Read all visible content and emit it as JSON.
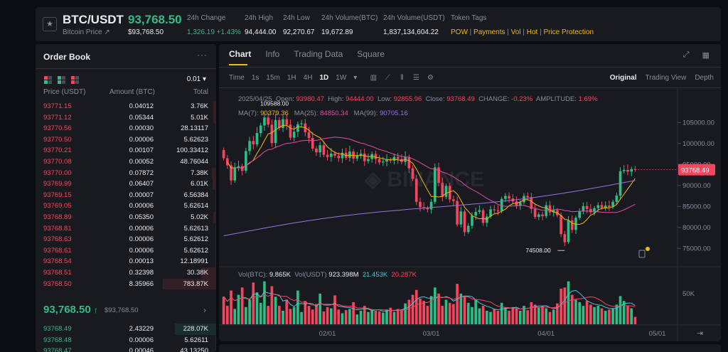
{
  "ticker": {
    "symbol": "BTC/USDT",
    "subtitle": "Bitcoin Price ↗",
    "last_price": "93,768.50",
    "last_price_usd": "$93,768.50",
    "stats": [
      {
        "label": "24h Change",
        "value": "1,326.19 +1.43%",
        "color": "#2ebd85"
      },
      {
        "label": "24h High",
        "value": "94,444.00",
        "color": "#eaecef"
      },
      {
        "label": "24h Low",
        "value": "92,270.67",
        "color": "#eaecef"
      },
      {
        "label": "24h Volume(BTC)",
        "value": "19,672.89",
        "color": "#eaecef"
      },
      {
        "label": "24h Volume(USDT)",
        "value": "1,837,134,604.22",
        "color": "#eaecef"
      }
    ],
    "tags_label": "Token Tags",
    "tags": [
      "POW",
      "Payments",
      "Vol",
      "Hot",
      "Price Protection"
    ]
  },
  "orderbook": {
    "title": "Order Book",
    "more": "···",
    "precision": "0.01 ▾",
    "headers": {
      "price": "Price (USDT)",
      "amount": "Amount (BTC)",
      "total": "Total"
    },
    "asks": [
      {
        "price": "93771.15",
        "amount": "0.04012",
        "total": "3.76K",
        "depth": 0.05
      },
      {
        "price": "93771.12",
        "amount": "0.05344",
        "total": "5.01K",
        "depth": 0.06
      },
      {
        "price": "93770.56",
        "amount": "0.00030",
        "total": "28.13117",
        "depth": 0.01
      },
      {
        "price": "93770.50",
        "amount": "0.00006",
        "total": "5.62623",
        "depth": 0.01
      },
      {
        "price": "93770.21",
        "amount": "0.00107",
        "total": "100.33412",
        "depth": 0.01
      },
      {
        "price": "93770.08",
        "amount": "0.00052",
        "total": "48.76044",
        "depth": 0.01
      },
      {
        "price": "93770.00",
        "amount": "0.07872",
        "total": "7.38K",
        "depth": 0.08
      },
      {
        "price": "93769.99",
        "amount": "0.06407",
        "total": "6.01K",
        "depth": 0.07
      },
      {
        "price": "93769.15",
        "amount": "0.00007",
        "total": "6.56384",
        "depth": 0.01
      },
      {
        "price": "93769.05",
        "amount": "0.00006",
        "total": "5.62614",
        "depth": 0.01
      },
      {
        "price": "93768.89",
        "amount": "0.05350",
        "total": "5.02K",
        "depth": 0.06
      },
      {
        "price": "93768.81",
        "amount": "0.00006",
        "total": "5.62613",
        "depth": 0.01
      },
      {
        "price": "93768.63",
        "amount": "0.00006",
        "total": "5.62612",
        "depth": 0.01
      },
      {
        "price": "93768.61",
        "amount": "0.00006",
        "total": "5.62612",
        "depth": 0.01
      },
      {
        "price": "93768.54",
        "amount": "0.00013",
        "total": "12.18991",
        "depth": 0.01
      },
      {
        "price": "93768.51",
        "amount": "0.32398",
        "total": "30.38K",
        "depth": 0.28
      },
      {
        "price": "93768.50",
        "amount": "8.35966",
        "total": "783.87K",
        "depth": 1.0
      }
    ],
    "mid_price": "93,768.50",
    "mid_arrow": "↑",
    "mid_usd": "$93,768.50",
    "mid_chevron": "›",
    "bids": [
      {
        "price": "93768.49",
        "amount": "2.43229",
        "total": "228.07K",
        "depth": 0.78
      },
      {
        "price": "93768.48",
        "amount": "0.00006",
        "total": "5.62611",
        "depth": 0.01
      },
      {
        "price": "93768.47",
        "amount": "0.00046",
        "total": "43.13250",
        "depth": 0.01
      }
    ]
  },
  "chart_panel": {
    "tabs": [
      "Chart",
      "Info",
      "Trading Data",
      "Square"
    ],
    "active_tab": "Chart",
    "intervals": [
      "Time",
      "1s",
      "15m",
      "1H",
      "4H",
      "1D",
      "1W"
    ],
    "active_interval": "1D",
    "interval_more": "▾",
    "view_modes": [
      "Original",
      "Trading View",
      "Depth"
    ],
    "active_view": "Original",
    "ohlc": {
      "date": "2025/04/25",
      "open_label": "Open:",
      "open": "93980.47",
      "high_label": "High:",
      "high": "94444.00",
      "low_label": "Low:",
      "low": "92855.96",
      "close_label": "Close:",
      "close": "93768.49",
      "change_label": "CHANGE:",
      "change": "-0.23%",
      "amplitude_label": "AMPLITUDE:",
      "amplitude": "1.69%"
    },
    "ma": {
      "ma7_label": "MA(7):",
      "ma7": "90379.36",
      "ma25_label": "MA(25):",
      "ma25": "84850.34",
      "ma99_label": "MA(99):",
      "ma99": "90705.16"
    },
    "volume": {
      "btc_label": "Vol(BTC):",
      "btc": "9.865K",
      "usdt_label": "Vol(USDT)",
      "usdt": "923.398M",
      "v1": "21.453K",
      "v2": "20.287K"
    },
    "annotations": {
      "high_label": "109588.00",
      "low_label": "74508.00"
    },
    "current_price_tag": "93768.49",
    "expand_icon": "⤢",
    "grid_icon": "▦",
    "bottom_icon": "⇥"
  },
  "chart_data": {
    "type": "line",
    "title": "",
    "y_ticks": [
      105000,
      100000,
      95000,
      90000,
      85000,
      80000,
      75000
    ],
    "y_tick_labels": [
      "105000.00",
      "100000.00",
      "95000.00",
      "90000.00",
      "85000.00",
      "80000.00",
      "75000.00"
    ],
    "ylim": [
      72000,
      111500
    ],
    "x_tick_labels": [
      "02/01",
      "03/01",
      "04/01",
      "05/01"
    ],
    "x_tick_index": [
      28,
      56,
      87,
      117
    ],
    "volume_ticks": [
      "50K"
    ],
    "volume_max": 80000,
    "annotation_high": 109588,
    "annotation_low": 74508,
    "close": [
      96500,
      94800,
      91200,
      94300,
      94600,
      93500,
      98200,
      100600,
      99800,
      102500,
      104300,
      106200,
      104500,
      100100,
      105600,
      103700,
      105800,
      104500,
      101400,
      102800,
      104600,
      104800,
      102700,
      101300,
      98800,
      97900,
      99600,
      97300,
      96800,
      97600,
      97100,
      96500,
      97800,
      96600,
      98100,
      96400,
      97200,
      97600,
      95800,
      96300,
      97500,
      96300,
      95500,
      95700,
      96100,
      95900,
      96800,
      96300,
      95600,
      96800,
      94100,
      91600,
      86100,
      84800,
      84600,
      84300,
      86100,
      94300,
      90600,
      87300,
      89900,
      86700,
      86300,
      80700,
      83800,
      78900,
      80400,
      82800,
      83700,
      84100,
      81100,
      82600,
      84300,
      84100,
      83900,
      86800,
      87500,
      86900,
      86200,
      85200,
      86000,
      87500,
      87200,
      84400,
      82500,
      83100,
      82700,
      85300,
      83600,
      84100,
      82900,
      78400,
      76500,
      81700,
      79400,
      82300,
      83900,
      85100,
      84400,
      83600,
      84600,
      85300,
      84700,
      85200,
      84900,
      86100,
      87600,
      93400,
      93700,
      93300,
      93900,
      93768
    ],
    "series": [
      {
        "name": "MA(7)",
        "color": "#f0b90b"
      },
      {
        "name": "MA(25)",
        "color": "#e54ba8"
      },
      {
        "name": "MA(99)",
        "color": "#9b73e0"
      }
    ],
    "volume": [
      45000,
      30000,
      55000,
      25000,
      48000,
      60000,
      28000,
      40000,
      68000,
      52000,
      35000,
      70000,
      30000,
      62000,
      45000,
      30000,
      22000,
      40000,
      25000,
      28000,
      55000,
      20000,
      38000,
      30000,
      24000,
      33000,
      50000,
      21000,
      28000,
      26000,
      47000,
      24000,
      18000,
      23000,
      25000,
      36000,
      16000,
      22000,
      30000,
      20000,
      24000,
      22000,
      21000,
      19000,
      24000,
      27000,
      20000,
      25000,
      22000,
      34000,
      40000,
      48000,
      56000,
      42000,
      38000,
      30000,
      46000,
      60000,
      50000,
      30000,
      40000,
      35000,
      33000,
      66000,
      50000,
      46000,
      35000,
      28000,
      40000,
      26000,
      30000,
      22000,
      20000,
      25000,
      22000,
      35000,
      27000,
      22000,
      28000,
      26000,
      22000,
      30000,
      23000,
      36000,
      32000,
      28000,
      30000,
      26000,
      20000,
      24000,
      34000,
      58000,
      60000,
      70000,
      48000,
      40000,
      36000,
      30000,
      38000,
      32000,
      28000,
      30000,
      26000,
      22000,
      24000,
      26000,
      32000,
      46000,
      38000,
      30000,
      26000,
      12000
    ]
  }
}
